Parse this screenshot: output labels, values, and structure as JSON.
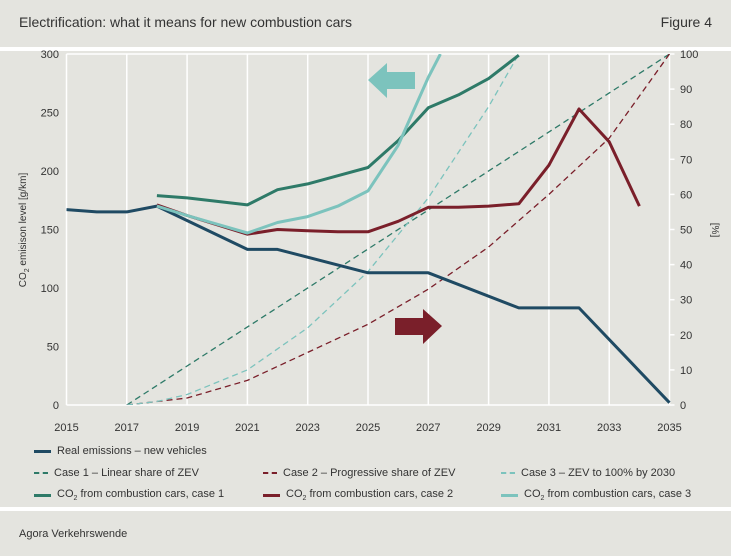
{
  "header": {
    "title": "Electrification: what it means for new combustion cars",
    "figure": "Figure 4"
  },
  "footer": {
    "source": "Agora Verkehrswende"
  },
  "chart_data": {
    "type": "line",
    "xlim": [
      2015,
      2035
    ],
    "x_ticks": [
      "2015",
      "2017",
      "2019",
      "2021",
      "2023",
      "2025",
      "2027",
      "2029",
      "2031",
      "2033",
      "2035"
    ],
    "ylabel_left": "CO2 emisison level [g/km]",
    "ylim_left": [
      0,
      300
    ],
    "y_ticks_left": [
      "0",
      "50",
      "100",
      "150",
      "200",
      "250",
      "300"
    ],
    "ylabel_right": "[%]",
    "ylim_right": [
      0,
      100
    ],
    "y_ticks_right": [
      "0",
      "10",
      "20",
      "30",
      "40",
      "50",
      "60",
      "70",
      "80",
      "90",
      "100"
    ],
    "grid": "vertical",
    "legend_position": "bottom",
    "series": [
      {
        "name": "Real emissions – new vehicles",
        "axis": "left",
        "style": "solid",
        "color": "#1f4a63",
        "x": [
          2015,
          2016,
          2017,
          2018,
          2021,
          2022,
          2025,
          2027,
          2030,
          2032,
          2035
        ],
        "y": [
          167,
          165,
          165,
          170,
          133,
          133,
          113,
          113,
          83,
          83,
          2
        ]
      },
      {
        "name": "Case 1 – Linear share of ZEV",
        "axis": "right",
        "style": "dashed",
        "color": "#2e7a68",
        "x": [
          2017,
          2035
        ],
        "y": [
          0,
          100
        ]
      },
      {
        "name": "Case 2 – Progressive share of ZEV",
        "axis": "right",
        "style": "dashed",
        "color": "#7a1f2a",
        "x": [
          2017,
          2019,
          2021,
          2023,
          2025,
          2027,
          2029,
          2031,
          2033,
          2035
        ],
        "y": [
          0,
          2,
          7,
          15,
          23,
          33,
          45,
          60,
          76,
          100
        ]
      },
      {
        "name": "Case 3 – ZEV to 100% by 2030",
        "axis": "right",
        "style": "dashed",
        "color": "#7cc3bd",
        "x": [
          2017,
          2018,
          2019,
          2021,
          2023,
          2025,
          2027,
          2029,
          2030
        ],
        "y": [
          0,
          1,
          3,
          10,
          22,
          38,
          59,
          85,
          100
        ]
      },
      {
        "name": "CO2 from combustion cars, case 1",
        "axis": "left",
        "style": "solid",
        "color": "#2e7a68",
        "x": [
          2018,
          2019,
          2021,
          2022,
          2023,
          2024,
          2025,
          2026,
          2027,
          2028,
          2029,
          2030
        ],
        "y": [
          179,
          177,
          171,
          184,
          189,
          196,
          203,
          226,
          254,
          265,
          279,
          299
        ]
      },
      {
        "name": "CO2 from combustion cars, case 2",
        "axis": "left",
        "style": "solid",
        "color": "#7a1f2a",
        "x": [
          2018,
          2019,
          2021,
          2022,
          2023,
          2024,
          2025,
          2026,
          2027,
          2028,
          2029,
          2030,
          2031,
          2032,
          2033,
          2034
        ],
        "y": [
          171,
          162,
          146,
          150,
          149,
          148,
          148,
          157,
          169,
          169,
          170,
          172,
          205,
          253,
          225,
          170
        ]
      },
      {
        "name": "CO2 from combustion cars, case 3",
        "axis": "left",
        "style": "solid",
        "color": "#7cc3bd",
        "x": [
          2018,
          2019,
          2021,
          2022,
          2023,
          2024,
          2025,
          2026,
          2027,
          2027.4
        ],
        "y": [
          170,
          162,
          147,
          156,
          161,
          170,
          183,
          222,
          280,
          300
        ]
      }
    ],
    "annotations": [
      {
        "type": "arrow-left",
        "meaning": "left axis",
        "color": "#7cc3bd"
      },
      {
        "type": "arrow-right",
        "meaning": "right axis",
        "color": "#7a1f2a"
      }
    ]
  }
}
